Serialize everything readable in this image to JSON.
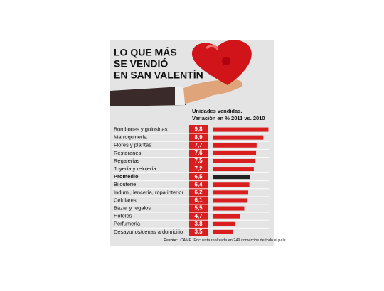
{
  "chart_data": {
    "type": "bar",
    "title": [
      "LO QUE MÁS",
      "SE VENDIÓ",
      "EN SAN VALENTÍN"
    ],
    "subtitle": [
      "Unidades vendidas.",
      "Variación en % 2011 vs. 2010"
    ],
    "categories": [
      "Bombones y golosinas",
      "Marroquinería",
      "Flores y plantas",
      "Restoranes",
      "Regalerías",
      "Joyería y relojería",
      "Promedio",
      "Bijouterie",
      "Indum., lencería, ropa interior",
      "Celulares",
      "Bazar y regalos",
      "Hoteles",
      "Perfumería",
      "Desayunos/cenas a domicilio"
    ],
    "values": [
      9.8,
      8.9,
      7.7,
      7.6,
      7.5,
      7.2,
      6.5,
      6.4,
      6.2,
      6.1,
      5.5,
      4.7,
      3.8,
      3.5
    ],
    "value_labels": [
      "9,8",
      "8,9",
      "7,7",
      "7,6",
      "7,5",
      "7,2",
      "6,5",
      "6,4",
      "6,2",
      "6,1",
      "5,5",
      "4,7",
      "3,8",
      "3,5"
    ],
    "colors": [
      "#d81e1e",
      "#d81e1e",
      "#d81e1e",
      "#d81e1e",
      "#d81e1e",
      "#d81e1e",
      "#222222",
      "#d81e1e",
      "#d81e1e",
      "#d81e1e",
      "#d81e1e",
      "#d81e1e",
      "#d81e1e",
      "#d81e1e"
    ],
    "source": {
      "label": "Fuente:",
      "text": "CAME. Encuesta realizada en 249 comercios de todo el país."
    }
  }
}
